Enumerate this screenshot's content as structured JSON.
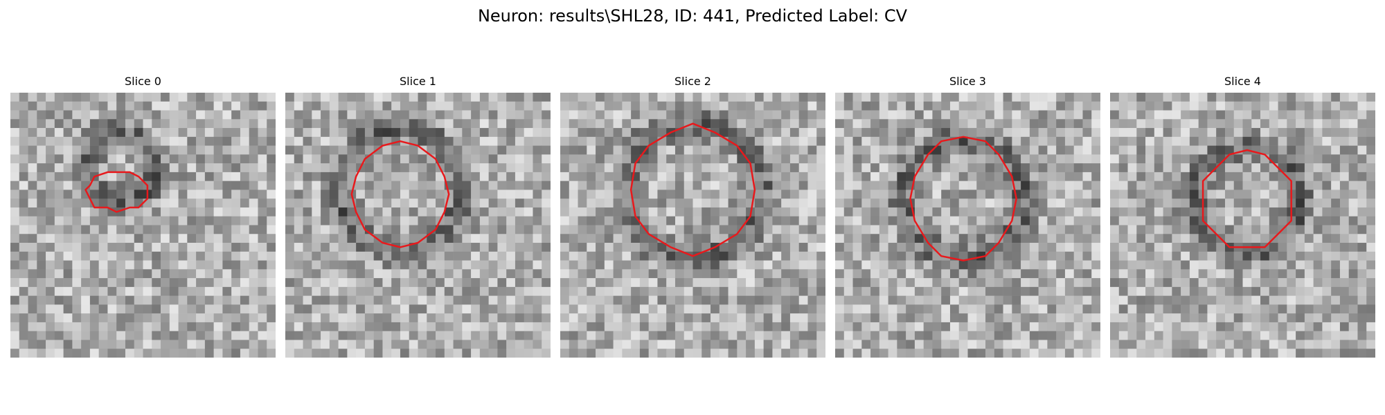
{
  "figure": {
    "title": "Neuron: results\\SHL28, ID: 441, Predicted Label: CV"
  },
  "panels": [
    {
      "title": "Slice 0",
      "contour": {
        "cx": 12.2,
        "cy": 11.2,
        "rx": 3.5,
        "ry": 2.2
      },
      "dark_center": {
        "cx": 12.5,
        "cy": 8.5,
        "r": 4.5
      }
    },
    {
      "title": "Slice 1",
      "contour": {
        "cx": 13.0,
        "cy": 11.5,
        "rx": 5.4,
        "ry": 5.8
      },
      "dark_center": {
        "cx": 13.0,
        "cy": 11.0,
        "r": 8.0
      }
    },
    {
      "title": "Slice 2",
      "contour": {
        "cx": 15.0,
        "cy": 11.0,
        "rx": 7.0,
        "ry": 7.3
      },
      "dark_center": {
        "cx": 15.0,
        "cy": 11.0,
        "r": 9.0
      }
    },
    {
      "title": "Slice 3",
      "contour": {
        "cx": 14.5,
        "cy": 12.0,
        "rx": 6.0,
        "ry": 6.8
      },
      "dark_center": {
        "cx": 14.5,
        "cy": 12.0,
        "r": 8.0
      }
    },
    {
      "title": "Slice 4",
      "contour": {
        "cx": 15.5,
        "cy": 12.2,
        "rx": 5.2,
        "ry": 5.5
      },
      "dark_center": {
        "cx": 15.5,
        "cy": 12.2,
        "r": 7.0
      }
    }
  ],
  "colors": {
    "contour": "#e8191c",
    "background": "#ffffff"
  }
}
